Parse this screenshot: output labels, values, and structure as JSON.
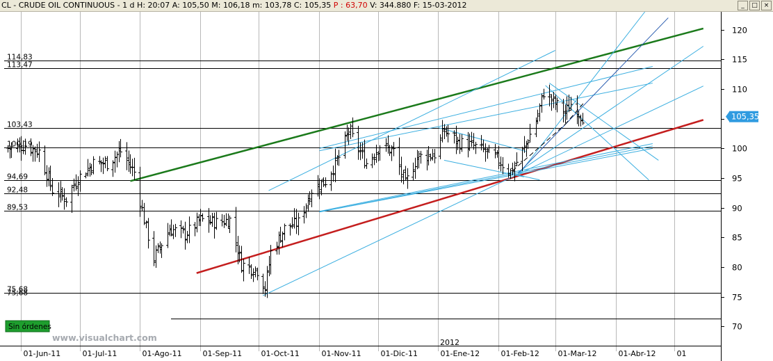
{
  "window": {
    "title_parts": {
      "symbol": "CL - CRUDE OIL CONTINUOUS - ",
      "interval": "1 d",
      "hour": "H: 20:07",
      "open": "A: 105,50",
      "high": "M: 106,18",
      "low": "m: 103,78",
      "close": "C: 105,35",
      "change": "P : 63,70",
      "volume": "V: 344.880",
      "date": "F: 15-03-2012"
    },
    "buttons": [
      "_",
      "□",
      "×"
    ]
  },
  "colors": {
    "price": "#000000",
    "green_trend": "#1b7a1b",
    "red_trend": "#c41e1e",
    "blue_lines": "#3aaee0",
    "last_price_box": "#2f9be0",
    "order_badge": "#1e9e2e"
  },
  "watermark": "www.visualchart.com",
  "orders_badge": "Sin órdenes",
  "year_marker": "2012",
  "chart_data": {
    "type": "ohlc",
    "title": "CL - CRUDE OIL CONTINUOUS",
    "xlabel": "",
    "ylabel": "",
    "ylim": [
      69,
      123
    ],
    "y_ticks": [
      70,
      75,
      80,
      85,
      90,
      95,
      100,
      105,
      110,
      115,
      120
    ],
    "x_ticks": [
      "01-Jun-11",
      "01-Jul-11",
      "01-Ago-11",
      "01-Sep-11",
      "01-Oct-11",
      "01-Nov-11",
      "01-Dic-11",
      "01-Ene-12",
      "01-Feb-12",
      "01-Mar-12",
      "01-Abr-12",
      "01"
    ],
    "last_price": "105,35",
    "grid": "vertical",
    "horizontal_levels": [
      {
        "label": "114,83",
        "value": 114.83
      },
      {
        "label": "113,47",
        "value": 113.47
      },
      {
        "label": "103,43",
        "value": 103.43
      },
      {
        "label": "100,19",
        "value": 100.19
      },
      {
        "label": "94,69",
        "value": 94.69
      },
      {
        "label": "92,48",
        "value": 92.48
      },
      {
        "label": "89,53",
        "value": 89.53
      },
      {
        "label": "75,68",
        "value": 75.68
      },
      {
        "label": "75,68",
        "value": 75.68
      },
      {
        "label": "",
        "value": 71.3
      }
    ],
    "close_path": [
      [
        "2011-05-25",
        100
      ],
      [
        "2011-06-03",
        100.5
      ],
      [
        "2011-06-10",
        99.5
      ],
      [
        "2011-06-17",
        93
      ],
      [
        "2011-06-24",
        91.5
      ],
      [
        "2011-06-30",
        95
      ],
      [
        "2011-07-08",
        97.5
      ],
      [
        "2011-07-15",
        97.5
      ],
      [
        "2011-07-22",
        99.5
      ],
      [
        "2011-07-29",
        96
      ],
      [
        "2011-08-04",
        86.5
      ],
      [
        "2011-08-08",
        81.5
      ],
      [
        "2011-08-16",
        86.5
      ],
      [
        "2011-08-24",
        85.5
      ],
      [
        "2011-09-01",
        88
      ],
      [
        "2011-09-09",
        87.5
      ],
      [
        "2011-09-16",
        88
      ],
      [
        "2011-09-22",
        80.5
      ],
      [
        "2011-09-30",
        79.5
      ],
      [
        "2011-10-04",
        76.5
      ],
      [
        "2011-10-07",
        82.5
      ],
      [
        "2011-10-14",
        86.5
      ],
      [
        "2011-10-21",
        87.5
      ],
      [
        "2011-10-28",
        93
      ],
      [
        "2011-11-04",
        94.5
      ],
      [
        "2011-11-11",
        98.5
      ],
      [
        "2011-11-16",
        103
      ],
      [
        "2011-11-25",
        97.5
      ],
      [
        "2011-12-02",
        100.5
      ],
      [
        "2011-12-09",
        99.5
      ],
      [
        "2011-12-15",
        94
      ],
      [
        "2011-12-21",
        98.5
      ],
      [
        "2011-12-30",
        99
      ],
      [
        "2012-01-04",
        103
      ],
      [
        "2012-01-11",
        101
      ],
      [
        "2012-01-18",
        100.5
      ],
      [
        "2012-01-25",
        99.5
      ],
      [
        "2012-02-01",
        98
      ],
      [
        "2012-02-07",
        96
      ],
      [
        "2012-02-14",
        100
      ],
      [
        "2012-02-21",
        105.5
      ],
      [
        "2012-02-24",
        109.5
      ],
      [
        "2012-03-01",
        107.5
      ],
      [
        "2012-03-06",
        106
      ],
      [
        "2012-03-09",
        107.5
      ],
      [
        "2012-03-15",
        105.35
      ]
    ],
    "trend_lines": [
      {
        "color": "green",
        "from": [
          "2011-07-27",
          94.5
        ],
        "to": [
          "2012-05-16",
          120.2
        ]
      },
      {
        "color": "red",
        "from": [
          "2011-08-30",
          79.0
        ],
        "to": [
          "2012-05-16",
          104.8
        ]
      },
      {
        "color": "blue",
        "from": [
          "2011-10-03",
          75.2
        ],
        "to": [
          "2012-05-16",
          110.5
        ]
      },
      {
        "color": "blue",
        "from": [
          "2011-10-06",
          92.9
        ],
        "to": [
          "2012-03-01",
          116.5
        ]
      },
      {
        "color": "blue",
        "from": [
          "2011-11-01",
          100.0
        ],
        "to": [
          "2012-04-20",
          113.8
        ]
      },
      {
        "color": "blue",
        "from": [
          "2011-11-01",
          99.6
        ],
        "to": [
          "2012-04-20",
          111.0
        ]
      },
      {
        "color": "blue",
        "from": [
          "2011-11-01",
          89.4
        ],
        "to": [
          "2012-04-20",
          100.8
        ]
      },
      {
        "color": "blue",
        "from": [
          "2011-11-01",
          89.3
        ],
        "to": [
          "2012-04-20",
          100.4
        ]
      },
      {
        "color": "blue",
        "from": [
          "2011-11-01",
          89.3
        ],
        "to": [
          "2012-04-20",
          100.0
        ]
      },
      {
        "color": "blue",
        "from": [
          "2012-02-11",
          96.0
        ],
        "to": [
          "2012-05-16",
          117.2
        ]
      },
      {
        "color": "blue",
        "from": [
          "2012-02-11",
          95.5
        ],
        "to": [
          "2012-04-16",
          123.0
        ]
      },
      {
        "color": "navy",
        "from": [
          "2012-02-11",
          95.8
        ],
        "to": [
          "2012-04-28",
          122.0
        ]
      },
      {
        "color": "blue",
        "from": [
          "2012-01-01",
          103.5
        ],
        "to": [
          "2012-02-15",
          99.5
        ]
      },
      {
        "color": "blue",
        "from": [
          "2012-01-04",
          98.0
        ],
        "to": [
          "2012-02-14",
          95.2
        ]
      },
      {
        "color": "blue",
        "from": [
          "2012-02-11",
          95.5
        ],
        "to": [
          "2012-02-22",
          94.7
        ]
      },
      {
        "color": "blue",
        "from": [
          "2012-02-25",
          110.6
        ],
        "to": [
          "2012-04-18",
          94.7
        ]
      },
      {
        "color": "blue",
        "from": [
          "2012-02-27",
          111.0
        ],
        "to": [
          "2012-04-23",
          98.0
        ]
      },
      {
        "color": "black_dashed",
        "from": [
          "2012-02-08",
          96.2
        ],
        "to": [
          "2012-03-06",
          104.0
        ]
      },
      {
        "color": "black_dashed",
        "from": [
          "2012-03-06",
          104.0
        ],
        "to": [
          "2012-03-16",
          107.8
        ]
      }
    ]
  }
}
